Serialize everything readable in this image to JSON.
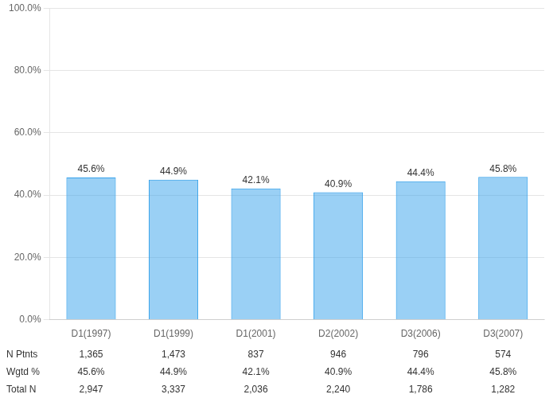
{
  "chart_data": {
    "type": "bar",
    "categories": [
      "D1(1997)",
      "D1(1999)",
      "D1(2001)",
      "D2(2002)",
      "D3(2006)",
      "D3(2007)"
    ],
    "values": [
      45.6,
      44.9,
      42.1,
      40.9,
      44.4,
      45.8
    ],
    "data_labels": true,
    "value_labels": [
      "45.6%",
      "44.9%",
      "42.1%",
      "40.9%",
      "44.4%",
      "45.8%"
    ],
    "ylim": [
      0,
      100
    ],
    "yticks": [
      {
        "value": 0,
        "label": "0.0%"
      },
      {
        "value": 20,
        "label": "20.0%"
      },
      {
        "value": 40,
        "label": "40.0%"
      },
      {
        "value": 60,
        "label": "60.0%"
      },
      {
        "value": 80,
        "label": "80.0%"
      },
      {
        "value": 100,
        "label": "100.0%"
      }
    ],
    "grid": true,
    "table": [
      {
        "label": "N Ptnts",
        "values": [
          "1,365",
          "1,473",
          "837",
          "946",
          "796",
          "574"
        ]
      },
      {
        "label": "Wgtd %",
        "values": [
          "45.6%",
          "44.9%",
          "42.1%",
          "40.9%",
          "44.4%",
          "45.8%"
        ]
      },
      {
        "label": "Total N",
        "values": [
          "2,947",
          "3,337",
          "2,036",
          "2,240",
          "1,786",
          "1,282"
        ]
      }
    ]
  }
}
